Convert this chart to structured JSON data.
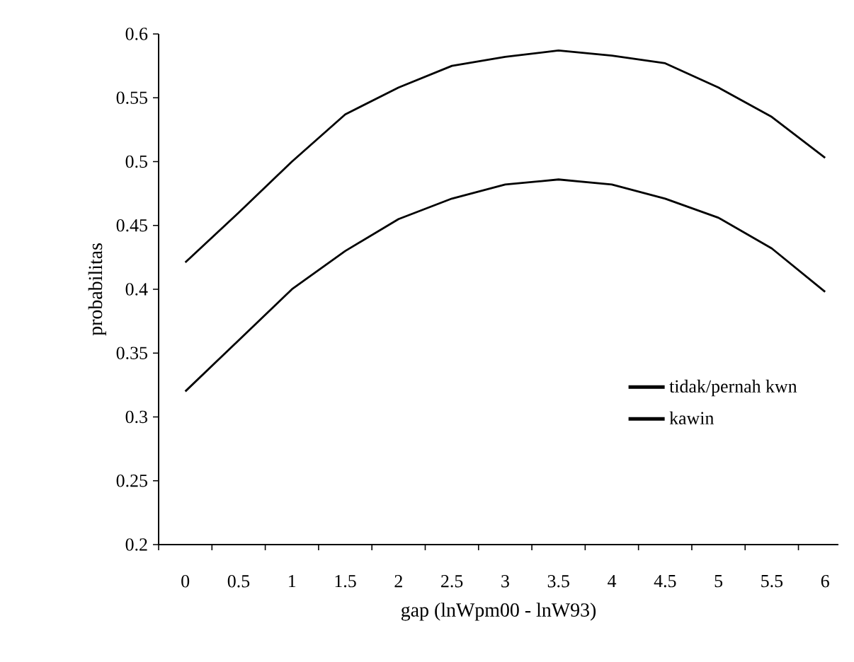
{
  "chart_data": {
    "type": "line",
    "xlabel": "gap (lnWpm00 - lnW93)",
    "ylabel": "probabilitas",
    "categories": [
      "0",
      "0.5",
      "1",
      "1.5",
      "2",
      "2.5",
      "3",
      "3.5",
      "4",
      "4.5",
      "5",
      "5.5",
      "6"
    ],
    "series": [
      {
        "name": "tidak/pernah kwn",
        "color": "#000000",
        "values": [
          0.421,
          0.46,
          0.5,
          0.537,
          0.558,
          0.575,
          0.582,
          0.587,
          0.583,
          0.577,
          0.558,
          0.535,
          0.503
        ]
      },
      {
        "name": "kawin",
        "color": "#000000",
        "values": [
          0.32,
          0.36,
          0.4,
          0.43,
          0.455,
          0.471,
          0.482,
          0.486,
          0.482,
          0.471,
          0.456,
          0.432,
          0.398
        ]
      }
    ],
    "ylim": [
      0.2,
      0.6
    ],
    "yticks": [
      0.2,
      0.25,
      0.3,
      0.35,
      0.4,
      0.45,
      0.5,
      0.55,
      0.6
    ],
    "grid": false,
    "legend": "bottom right",
    "marker": "none",
    "line_style": "solid"
  }
}
